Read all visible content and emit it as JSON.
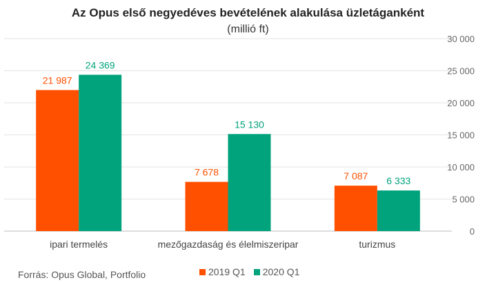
{
  "chart_data": {
    "type": "bar",
    "title": "Az Opus első negyedéves bevételének alakulása üzletáganként",
    "subtitle": "(millió ft)",
    "categories": [
      "ipari termelés",
      "mezőgazdaság és élelmiszeripar",
      "turizmus"
    ],
    "series": [
      {
        "name": "2019 Q1",
        "color": "#ff5000",
        "values": [
          21987,
          7678,
          7087
        ],
        "labels": [
          "21 987",
          "7 678",
          "7 087"
        ]
      },
      {
        "name": "2020 Q1",
        "color": "#00a37c",
        "values": [
          24369,
          15130,
          6333
        ],
        "labels": [
          "24 369",
          "15 130",
          "6 333"
        ]
      }
    ],
    "ylim": [
      0,
      30000
    ],
    "yticks": [
      0,
      5000,
      10000,
      15000,
      20000,
      25000,
      30000
    ],
    "ytick_labels": [
      "0",
      "5 000",
      "10 000",
      "15 000",
      "20 000",
      "25 000",
      "30 000"
    ],
    "y_axis_side": "right",
    "grid": true,
    "legend_position": "bottom"
  },
  "source": "Forrás: Opus Global, Portfolio"
}
